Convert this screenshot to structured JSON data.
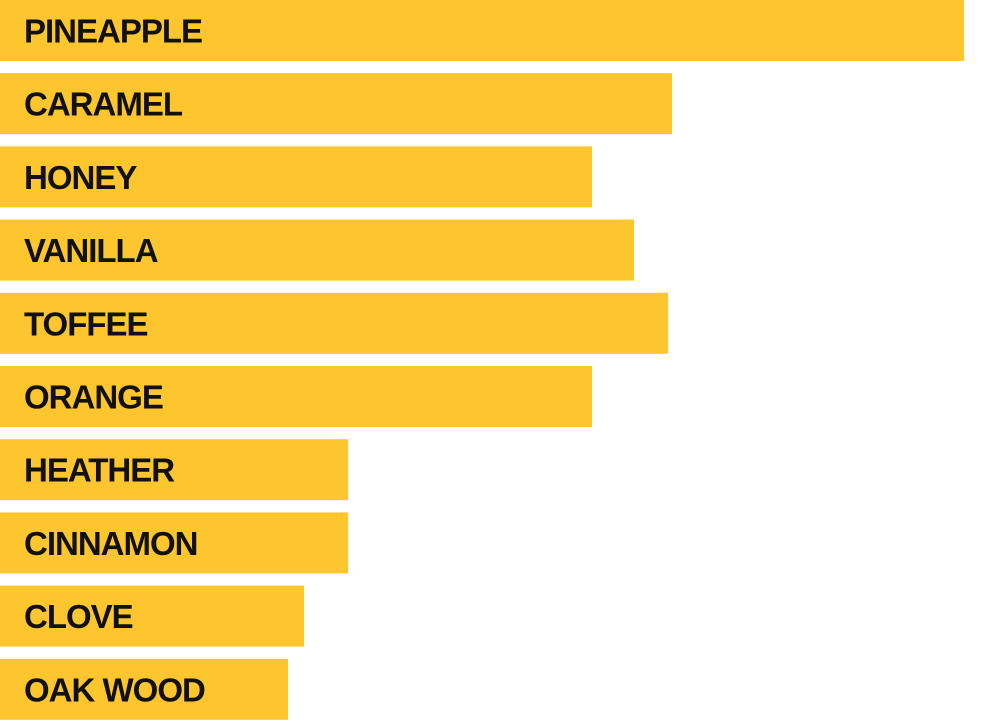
{
  "chart_data": {
    "type": "bar",
    "orientation": "horizontal",
    "title": "",
    "xlabel": "",
    "ylabel": "",
    "categories": [
      "PINEAPPLE",
      "CARAMEL",
      "HONEY",
      "VANILLA",
      "TOFFEE",
      "ORANGE",
      "HEATHER",
      "CINNAMON",
      "CLOVE",
      "OAK WOOD"
    ],
    "values": [
      241,
      168,
      148,
      158.5,
      167,
      148,
      87,
      87,
      76,
      72
    ],
    "xlim": [
      0,
      250
    ],
    "grid": false,
    "legend": "none"
  },
  "colors": {
    "bar": "#FDC52E",
    "label": "#111111",
    "background": "#FFFFFF"
  }
}
